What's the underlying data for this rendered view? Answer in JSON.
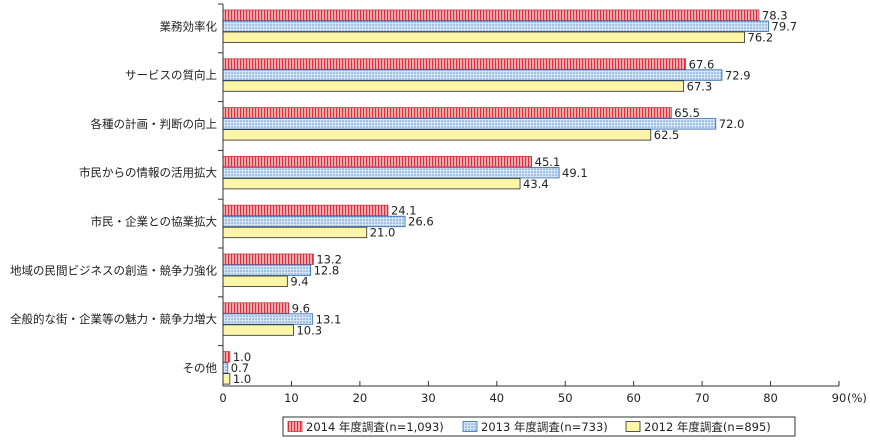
{
  "chart_data": {
    "type": "bar",
    "orientation": "horizontal",
    "categories": [
      "業務効率化",
      "サービスの質向上",
      "各種の計画・判断の向上",
      "市民からの情報の活用拡大",
      "市民・企業との協業拡大",
      "地域の民間ビジネスの創造・競争力強化",
      "全般的な街・企業等の魅力・競争力増大",
      "その他"
    ],
    "series": [
      {
        "name": "2014 年度調査(n=1,093)",
        "values": [
          78.3,
          67.6,
          65.5,
          45.1,
          24.1,
          13.2,
          9.6,
          1.0
        ],
        "labels": [
          "78.3",
          "67.6",
          "65.5",
          "45.1",
          "24.1",
          "13.2",
          "9.6",
          "1.0"
        ],
        "color": "#f4aeb3",
        "stroke": "#c8323c",
        "pattern": "vertical-stripes"
      },
      {
        "name": "2013 年度調査(n=733)",
        "values": [
          79.7,
          72.9,
          72.0,
          49.1,
          26.6,
          12.8,
          13.1,
          0.7
        ],
        "labels": [
          "79.7",
          "72.9",
          "72.0",
          "49.1",
          "26.6",
          "12.8",
          "13.1",
          "0.7"
        ],
        "color": "#c9ddf3",
        "stroke": "#2e6db5",
        "pattern": "dots"
      },
      {
        "name": "2012 年度調査(n=895)",
        "values": [
          76.2,
          67.3,
          62.5,
          43.4,
          21.0,
          9.4,
          10.3,
          1.0
        ],
        "labels": [
          "76.2",
          "67.3",
          "62.5",
          "43.4",
          "21.0",
          "9.4",
          "10.3",
          "1.0"
        ],
        "color": "#fdf6a8",
        "stroke": "#2b2b2b",
        "pattern": "solid"
      }
    ],
    "xlim": [
      0,
      90
    ],
    "xticks": [
      "0",
      "10",
      "20",
      "30",
      "40",
      "50",
      "60",
      "70",
      "80",
      "90"
    ],
    "xunit": "(%)",
    "grid": false,
    "legend_position": "bottom-right"
  }
}
